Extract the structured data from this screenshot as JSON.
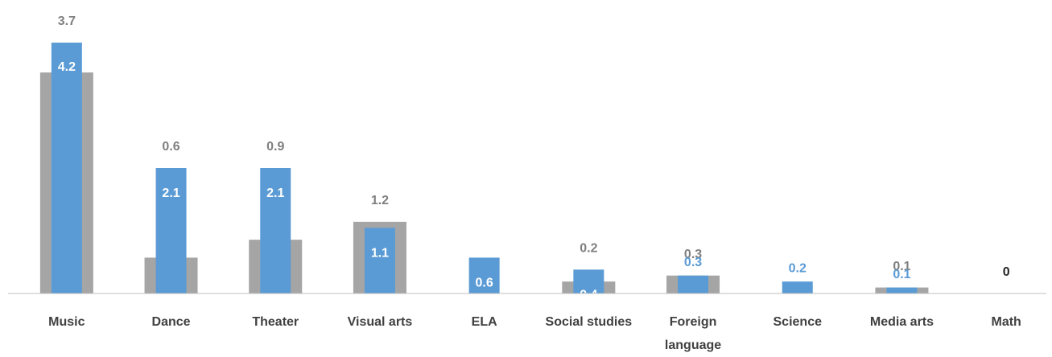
{
  "chart_data": {
    "type": "bar",
    "categories": [
      "Music",
      "Dance",
      "Theater",
      "Visual arts",
      "ELA",
      "Social studies",
      "Foreign language",
      "Science",
      "Media arts",
      "Math"
    ],
    "series": [
      {
        "color": "#a5a5a5",
        "values": [
          3.7,
          0.6,
          0.9,
          1.2,
          null,
          0.2,
          0.3,
          null,
          0.1,
          0
        ]
      },
      {
        "color": "#5b9bd5",
        "values": [
          4.2,
          2.1,
          2.1,
          1.1,
          0.6,
          0.4,
          0.3,
          0.2,
          0.1,
          null
        ]
      }
    ],
    "ylim": [
      0,
      4.9
    ]
  }
}
